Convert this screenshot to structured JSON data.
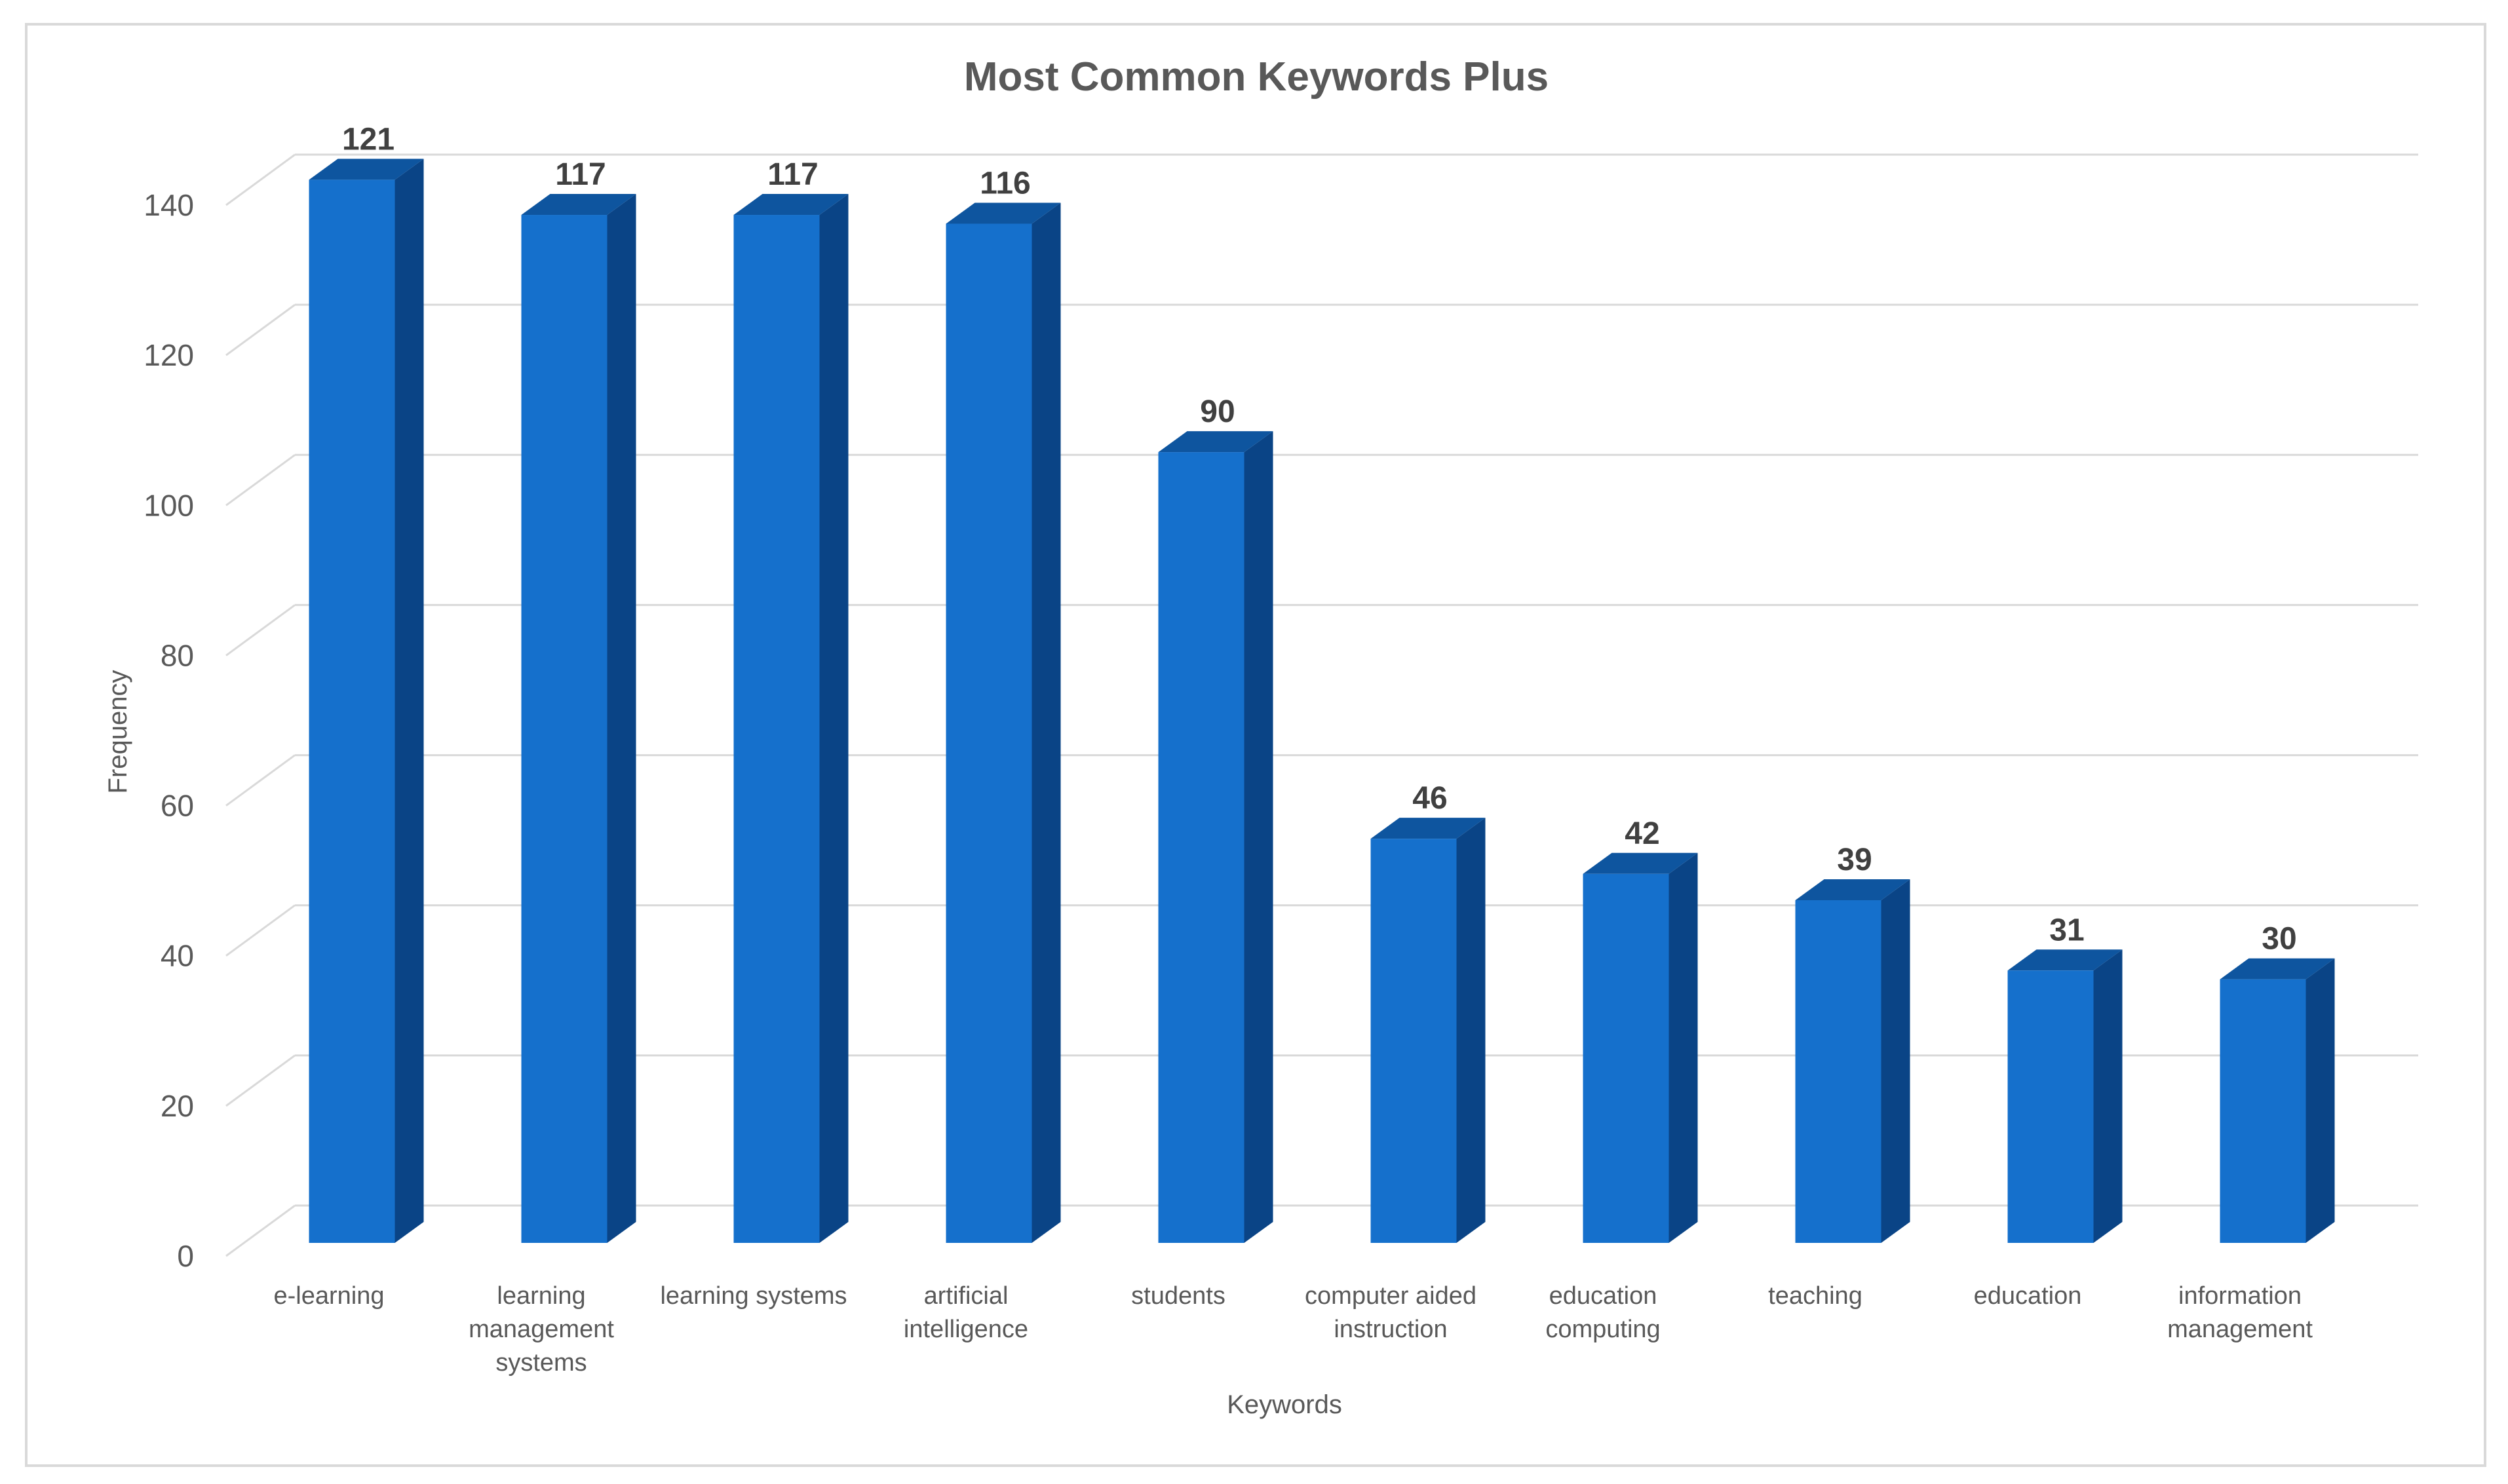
{
  "chart_data": {
    "type": "bar",
    "title": "Most Common Keywords Plus",
    "xlabel": "Keywords",
    "ylabel": "Frequency",
    "ylim": [
      0,
      140
    ],
    "yticks": [
      "0",
      "20",
      "40",
      "60",
      "80",
      "100",
      "120",
      "140"
    ],
    "categories": [
      [
        "e-learning"
      ],
      [
        "learning",
        "management",
        "systems"
      ],
      [
        "learning systems"
      ],
      [
        "artificial",
        "intelligence"
      ],
      [
        "students"
      ],
      [
        "computer aided",
        "instruction"
      ],
      [
        "education",
        "computing"
      ],
      [
        "teaching"
      ],
      [
        "education"
      ],
      [
        "information",
        "management"
      ]
    ],
    "values": [
      121,
      117,
      117,
      116,
      90,
      46,
      42,
      39,
      31,
      30
    ],
    "data_labels": [
      "121",
      "117",
      "117",
      "116",
      "90",
      "46",
      "42",
      "39",
      "31",
      "30"
    ],
    "grid": true,
    "legend": "none",
    "bar_style": "3d-column",
    "colors": {
      "bar_front": "#1570CC",
      "bar_side": "#0A4486",
      "bar_top": "#0E559F",
      "gridline": "#D9D9D9",
      "text": "#595959",
      "data_label": "#404040",
      "border": "#D9D9D9"
    }
  }
}
